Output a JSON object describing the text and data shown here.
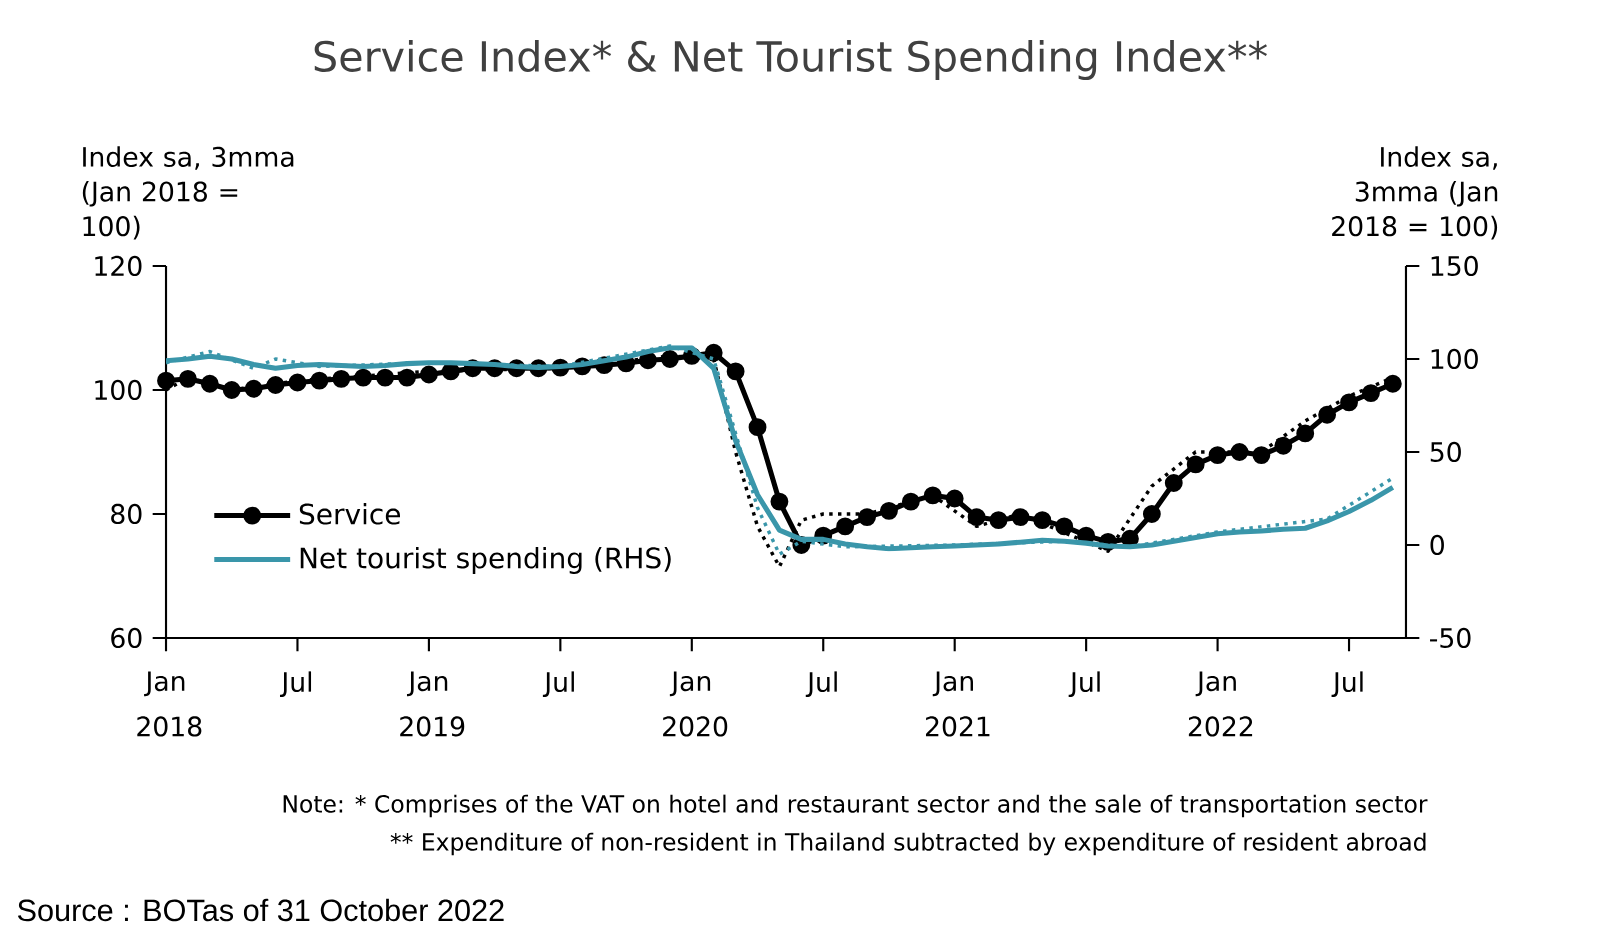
{
  "chart_data": {
    "type": "line",
    "title": "Service Index* & Net Tourist Spending Index**",
    "ylabel": "Index sa, 3mma (Jan 2018 = 100)",
    "y2label": "Index sa, 3mma (Jan 2018 = 100)",
    "x": [
      "2018-01",
      "2018-02",
      "2018-03",
      "2018-04",
      "2018-05",
      "2018-06",
      "2018-07",
      "2018-08",
      "2018-09",
      "2018-10",
      "2018-11",
      "2018-12",
      "2019-01",
      "2019-02",
      "2019-03",
      "2019-04",
      "2019-05",
      "2019-06",
      "2019-07",
      "2019-08",
      "2019-09",
      "2019-10",
      "2019-11",
      "2019-12",
      "2020-01",
      "2020-02",
      "2020-03",
      "2020-04",
      "2020-05",
      "2020-06",
      "2020-07",
      "2020-08",
      "2020-09",
      "2020-10",
      "2020-11",
      "2020-12",
      "2021-01",
      "2021-02",
      "2021-03",
      "2021-04",
      "2021-05",
      "2021-06",
      "2021-07",
      "2021-08",
      "2021-09",
      "2021-10",
      "2021-11",
      "2021-12",
      "2022-01",
      "2022-02",
      "2022-03",
      "2022-04",
      "2022-05",
      "2022-06",
      "2022-07",
      "2022-08",
      "2022-09"
    ],
    "xlim": [
      "2018-01",
      "2022-09-19"
    ],
    "xticks": [
      {
        "value": "2018-01",
        "label": "Jan 2018"
      },
      {
        "value": "2018-07",
        "label": "Jul"
      },
      {
        "value": "2019-01",
        "label": "Jan 2019"
      },
      {
        "value": "2019-07",
        "label": "Jul"
      },
      {
        "value": "2020-01",
        "label": "Jan 2020"
      },
      {
        "value": "2020-07",
        "label": "Jul"
      },
      {
        "value": "2021-01",
        "label": "Jan 2021"
      },
      {
        "value": "2021-07",
        "label": "Jul"
      },
      {
        "value": "2022-01",
        "label": "Jan 2022"
      },
      {
        "value": "2022-07",
        "label": "Jul"
      }
    ],
    "ylim": [
      60,
      120
    ],
    "yticks": [
      60,
      80,
      100,
      120
    ],
    "y2lim": [
      -50,
      150
    ],
    "y2ticks": [
      -50,
      0,
      50,
      100,
      150
    ],
    "legend": "left",
    "series": [
      {
        "name": "Service",
        "color": "#000000",
        "marker": "circle",
        "line_style": "solid",
        "values": [
          101.5,
          101.8,
          101,
          100,
          100.2,
          100.8,
          101.2,
          101.5,
          101.8,
          102,
          102,
          102,
          102.5,
          103,
          103.5,
          103.5,
          103.5,
          103.5,
          103.6,
          103.8,
          104,
          104.3,
          104.8,
          105,
          105.5,
          106,
          103,
          94,
          82,
          75,
          76.5,
          78,
          79.5,
          80.5,
          82,
          83,
          82.5,
          79.5,
          79,
          79.5,
          79,
          78,
          76.5,
          75.5,
          76,
          80,
          85,
          88,
          89.5,
          90,
          89.5,
          91,
          93,
          96,
          98,
          99.5,
          101
        ]
      },
      {
        "name": "Net tourist spending (RHS)",
        "color": "#3a96aa",
        "axis": "y2",
        "marker": "none",
        "line_style": "solid",
        "values": [
          99,
          100,
          101.5,
          100,
          97,
          95,
          96.5,
          97,
          96.5,
          96,
          96.5,
          97.5,
          98,
          98,
          97.5,
          97,
          96,
          95.5,
          96,
          97,
          99,
          101,
          104,
          106,
          106,
          95,
          56,
          27,
          8,
          3,
          3,
          0.5,
          -1,
          -2,
          -1.5,
          -1,
          -0.5,
          0,
          0.5,
          1.5,
          2.5,
          2,
          1,
          -0.5,
          -1,
          0,
          2,
          4,
          6,
          7,
          7.5,
          8.5,
          9,
          13,
          18,
          24,
          31
        ]
      },
      {
        "color": "#000000",
        "marker": "none",
        "line_style": "dotted",
        "x": [
          "2018-01",
          "2018-02",
          "2018-04",
          "2018-07",
          "2019-01",
          "2019-07",
          "2019-12",
          "2020-02",
          "2020-03",
          "2020-04",
          "2020-05",
          "2020-06",
          "2020-07",
          "2020-09",
          "2020-12",
          "2021-02",
          "2021-04",
          "2021-06",
          "2021-08",
          "2021-10",
          "2021-12",
          "2022-03",
          "2022-05",
          "2022-07",
          "2022-09"
        ],
        "values": [
          100,
          102,
          100,
          101.5,
          103,
          103.5,
          105.5,
          105,
          90,
          78,
          71.5,
          79,
          80,
          80,
          83,
          78,
          80,
          77,
          74,
          84.5,
          90,
          90,
          95,
          99,
          102
        ]
      },
      {
        "color": "#3a96aa",
        "axis": "y2",
        "marker": "none",
        "line_style": "dotted",
        "x": [
          "2018-01",
          "2018-03",
          "2018-05",
          "2018-06",
          "2018-08",
          "2019-01",
          "2019-07",
          "2019-12",
          "2020-02",
          "2020-03",
          "2020-04",
          "2020-05",
          "2020-06",
          "2020-08",
          "2021-01",
          "2021-06",
          "2021-09",
          "2022-01",
          "2022-06",
          "2022-09"
        ],
        "values": [
          98,
          104,
          95,
          100,
          96,
          98,
          96,
          107,
          100,
          60,
          20,
          -5,
          2,
          -1,
          0,
          2,
          -1,
          7,
          14,
          36
        ]
      }
    ],
    "annotations": [
      "Note: * Comprises of the VAT on hotel and restaurant sector and the sale of transportation sector",
      "** Expenditure of non-resident in Thailand subtracted by expenditure of resident abroad",
      "Source : BOTas of 31 October 2022"
    ]
  }
}
